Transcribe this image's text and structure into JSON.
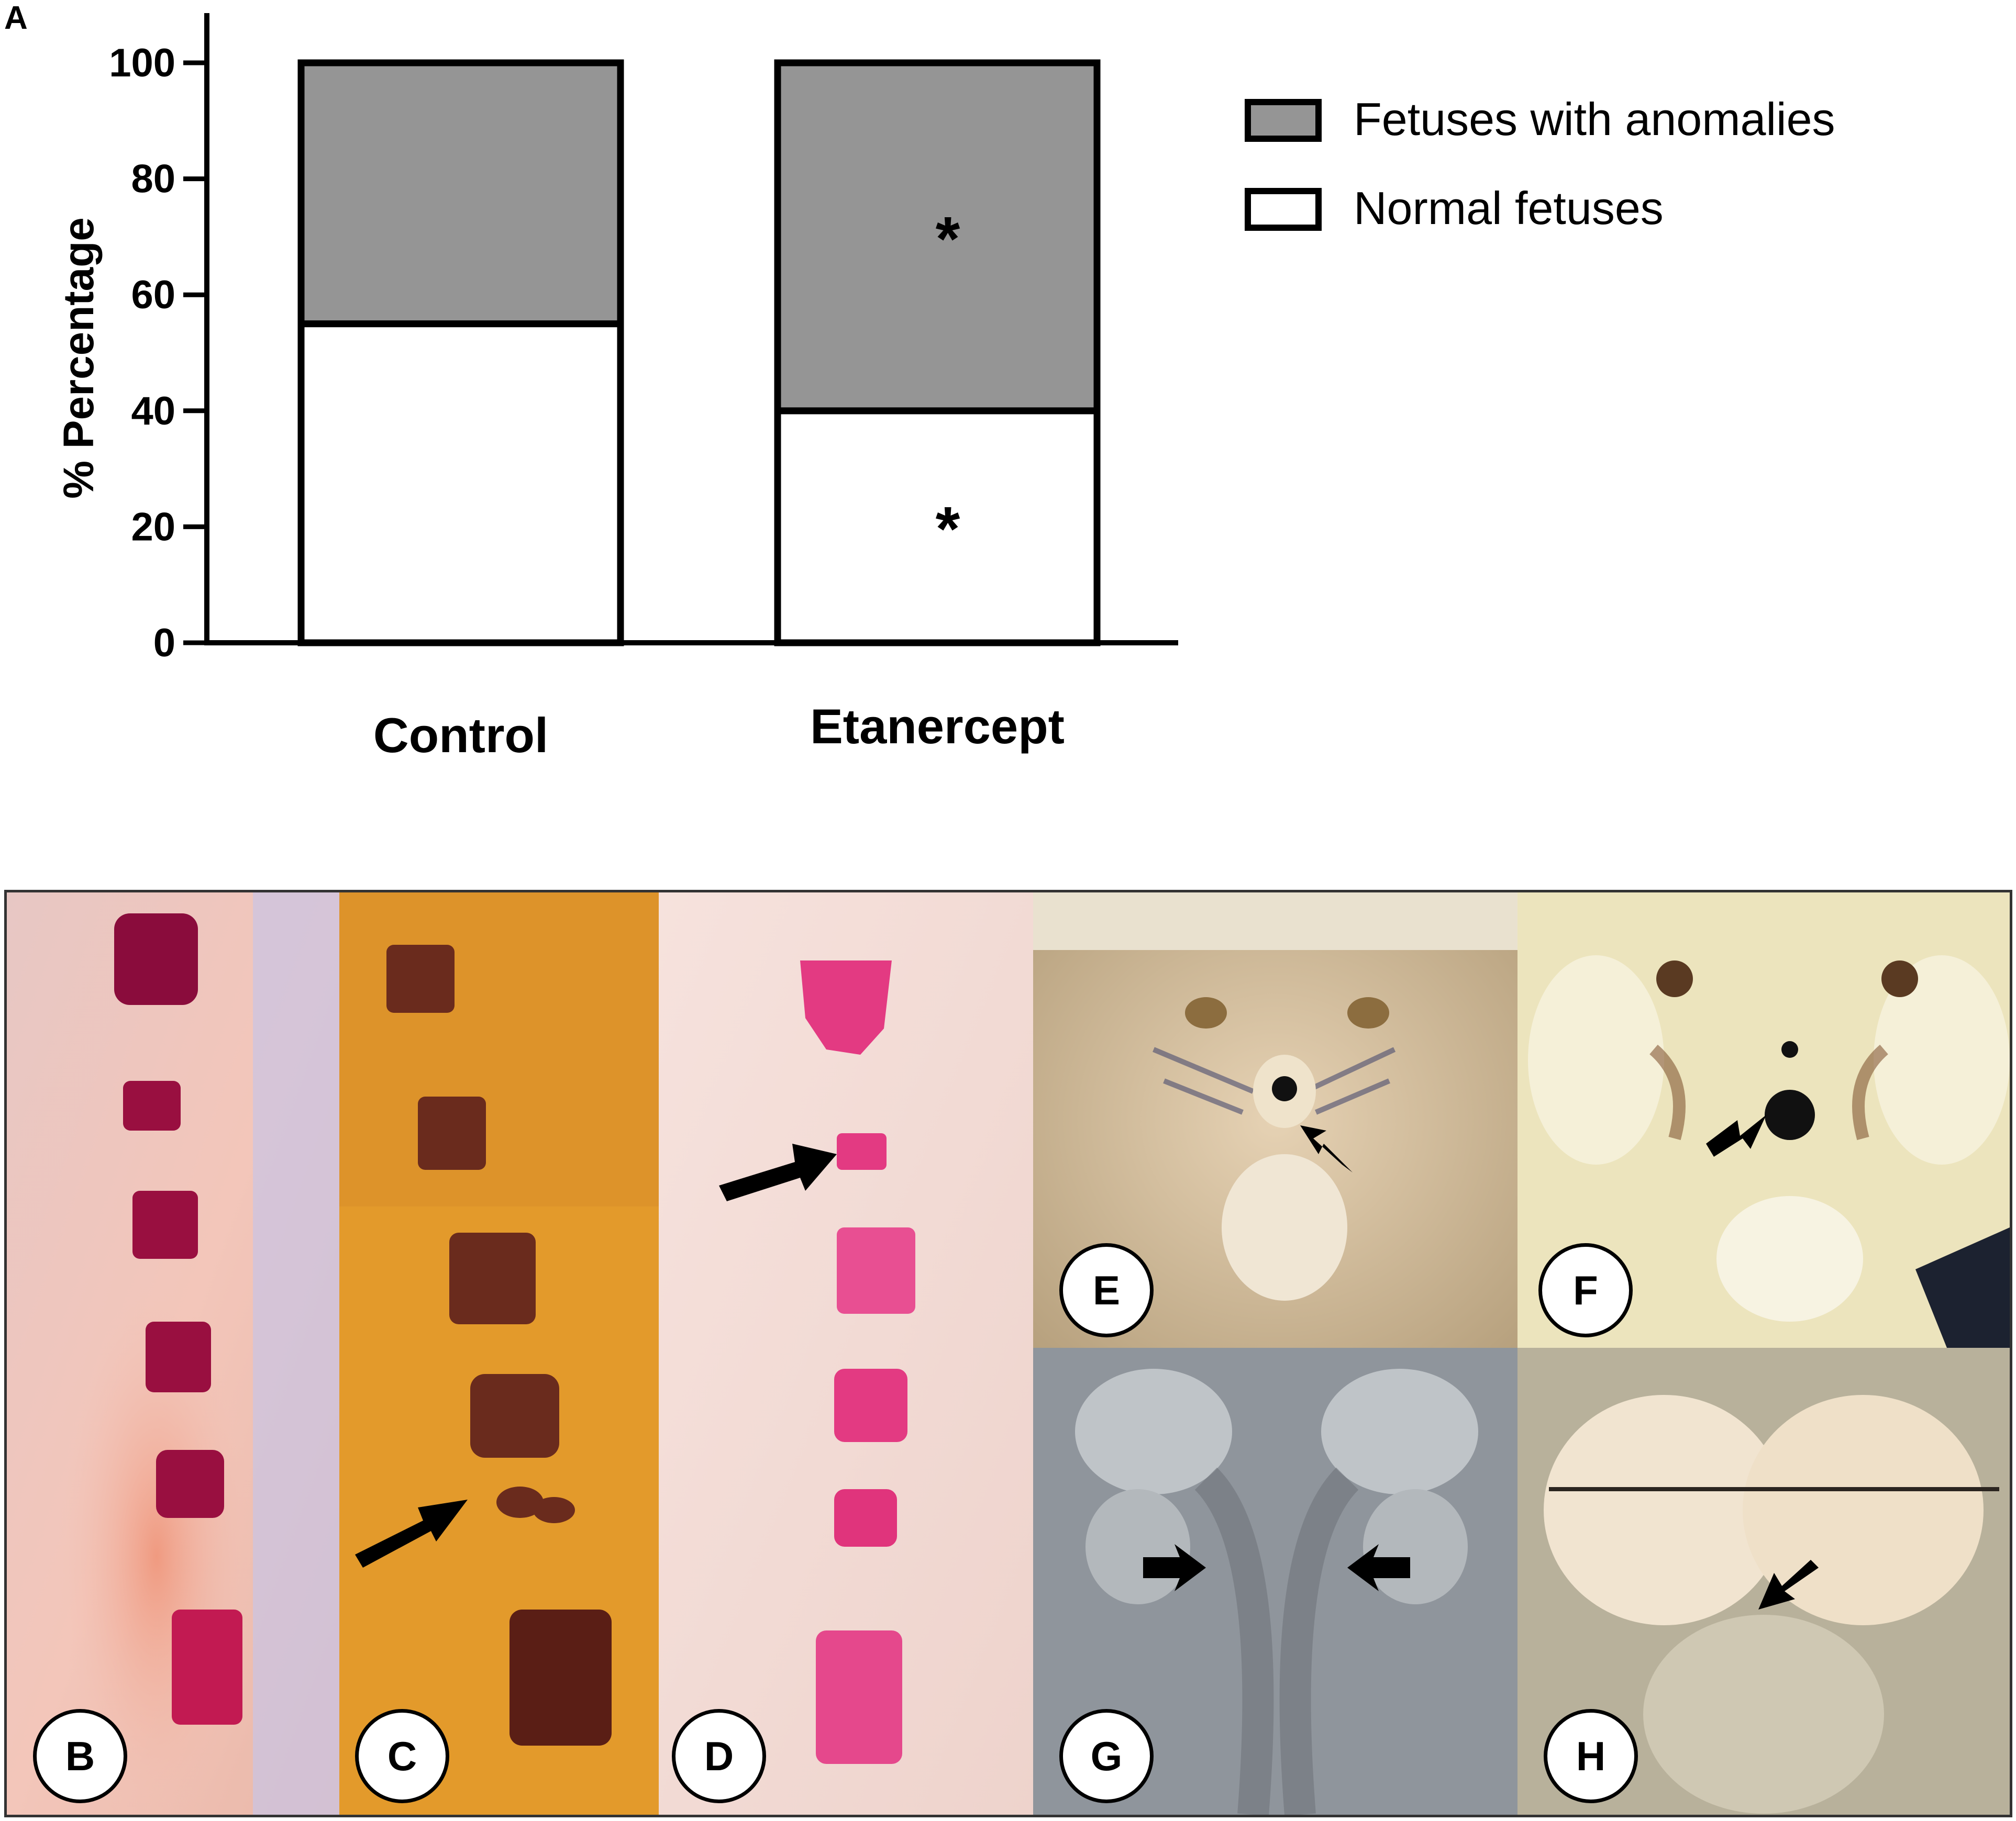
{
  "panel_label": "A",
  "chart_data": {
    "type": "bar",
    "stacked": true,
    "categories": [
      "Control",
      "Etanercept"
    ],
    "series": [
      {
        "name": "Normal fetuses",
        "values": [
          55,
          40
        ],
        "color": "#ffffff"
      },
      {
        "name": "Fetuses with anomalies",
        "values": [
          45,
          60
        ],
        "color": "#959595"
      }
    ],
    "ylabel": "% Percentage",
    "ylim": [
      0,
      100
    ],
    "yticks": [
      0,
      20,
      40,
      60,
      80,
      100
    ],
    "annotations": [
      {
        "category": "Etanercept",
        "series": "Fetuses with anomalies",
        "text": "*"
      },
      {
        "category": "Etanercept",
        "series": "Normal fetuses",
        "text": "*"
      }
    ],
    "legend": {
      "placement": "top-right",
      "entries": [
        {
          "label": "Fetuses with anomalies",
          "color": "#959595"
        },
        {
          "label": "Normal fetuses",
          "color": "#ffffff"
        }
      ]
    },
    "grid": false
  },
  "photo_panels": [
    {
      "label": "B",
      "background": "#f1c9c0"
    },
    {
      "label": "C",
      "background": "#e09a2e"
    },
    {
      "label": "D",
      "background": "#f4dcd6"
    },
    {
      "label": "E",
      "background": "#c9b58f"
    },
    {
      "label": "F",
      "background": "#e9e2b8"
    },
    {
      "label": "G",
      "background": "#9aa0a6"
    },
    {
      "label": "H",
      "background": "#c8c2ae"
    }
  ]
}
